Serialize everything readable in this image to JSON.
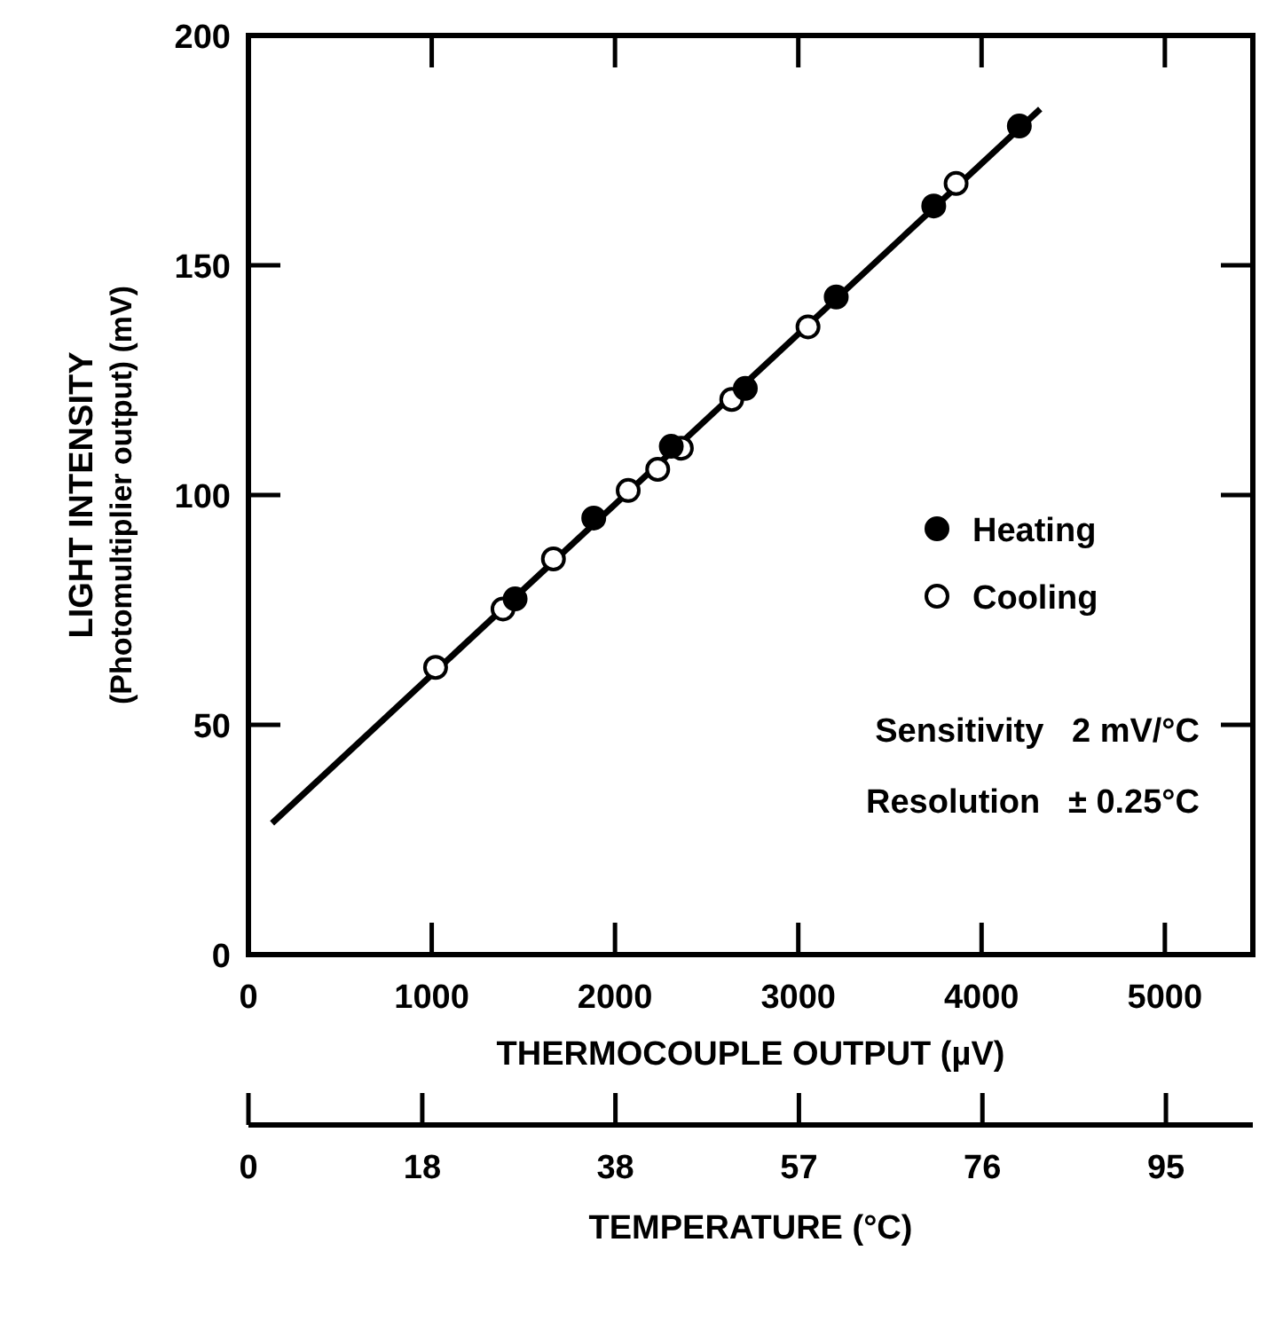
{
  "chart_data": {
    "type": "scatter",
    "xlabel": "THERMOCOUPLE OUTPUT (µV)",
    "ylabel": "LIGHT INTENSITY\n(Photomultiplier output) (mV)",
    "x2label": "TEMPERATURE (°C)",
    "xlim": [
      0,
      5480
    ],
    "xticks": [
      0,
      1000,
      2000,
      3000,
      4000,
      5000
    ],
    "ylim": [
      0,
      200
    ],
    "yticks": [
      0,
      50,
      100,
      150,
      200
    ],
    "x2lim": [
      0,
      104
    ],
    "x2ticks": [
      0,
      18,
      38,
      57,
      76,
      95
    ],
    "grid": false,
    "legend": "right",
    "marker": "circle",
    "annotations": [
      "Sensitivity   2 mV/°C",
      "Resolution   ± 0.25°C"
    ],
    "series": [
      {
        "type": "line",
        "color": "#000000",
        "x": [
          129,
          4320
        ],
        "values": [
          28.6,
          184.0
        ],
        "line_style": "solid",
        "marker": "none"
      },
      {
        "name": "Heating",
        "color": "#000000",
        "x": [
          4206,
          3739,
          3207,
          2711,
          2307,
          1884,
          1455
        ],
        "values": [
          180.3,
          162.9,
          143.1,
          123.2,
          110.6,
          95.0,
          77.4
        ]
      },
      {
        "name": "Cooling",
        "color": "#ffffff",
        "x": [
          3861,
          3053,
          2637,
          2362,
          2233,
          2072,
          1664,
          1389,
          1021
        ],
        "values": [
          167.8,
          136.6,
          120.8,
          110.2,
          105.6,
          101.0,
          86.1,
          75.2,
          62.5
        ]
      }
    ]
  }
}
